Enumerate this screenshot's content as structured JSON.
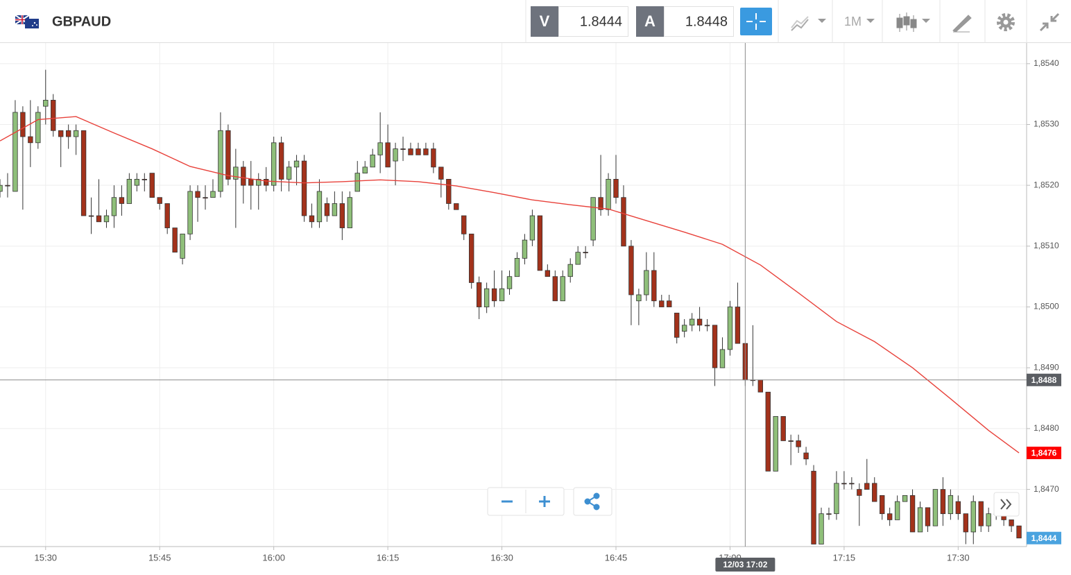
{
  "header": {
    "symbol": "GBPAUD",
    "bid_label": "V",
    "bid": "1.8444",
    "ask_label": "A",
    "ask": "1.8448",
    "timeframe": "1M"
  },
  "chart_data": {
    "type": "candlestick",
    "x": [
      "15:24",
      "15:25",
      "15:26",
      "15:27",
      "15:28",
      "15:29",
      "15:30",
      "15:31",
      "15:32",
      "15:33",
      "15:34",
      "15:35",
      "15:36",
      "15:37",
      "15:38",
      "15:39",
      "15:40",
      "15:41",
      "15:42",
      "15:43",
      "15:44",
      "15:45",
      "15:46",
      "15:47",
      "15:48",
      "15:49",
      "15:50",
      "15:51",
      "15:52",
      "15:53",
      "15:54",
      "15:55",
      "15:56",
      "15:57",
      "15:58",
      "15:59",
      "16:00",
      "16:01",
      "16:02",
      "16:03",
      "16:04",
      "16:05",
      "16:06",
      "16:07",
      "16:08",
      "16:09",
      "16:10",
      "16:11",
      "16:12",
      "16:13",
      "16:14",
      "16:15",
      "16:16",
      "16:17",
      "16:18",
      "16:19",
      "16:20",
      "16:21",
      "16:22",
      "16:23",
      "16:24",
      "16:25",
      "16:26",
      "16:27",
      "16:28",
      "16:29",
      "16:30",
      "16:31",
      "16:32",
      "16:33",
      "16:34",
      "16:35",
      "16:36",
      "16:37",
      "16:38",
      "16:39",
      "16:40",
      "16:41",
      "16:42",
      "16:43",
      "16:44",
      "16:45",
      "16:46",
      "16:47",
      "16:48",
      "16:49",
      "16:50",
      "16:51",
      "16:52",
      "16:53",
      "16:54",
      "16:55",
      "16:56",
      "16:57",
      "16:58",
      "16:59",
      "17:00",
      "17:01",
      "17:02",
      "17:03",
      "17:04",
      "17:05",
      "17:06",
      "17:07",
      "17:08",
      "17:09",
      "17:10",
      "17:11",
      "17:12",
      "17:13",
      "17:14",
      "17:15",
      "17:16",
      "17:17",
      "17:18",
      "17:19",
      "17:20",
      "17:21",
      "17:22",
      "17:23",
      "17:24",
      "17:25",
      "17:26",
      "17:27",
      "17:28",
      "17:29",
      "17:30",
      "17:31",
      "17:32",
      "17:33",
      "17:34",
      "17:35",
      "17:36",
      "17:37",
      "17:38"
    ],
    "open": [
      1.8519,
      1.852,
      1.8519,
      1.8532,
      1.8528,
      1.8527,
      1.8533,
      1.8534,
      1.8529,
      1.8529,
      1.8528,
      1.8529,
      1.8515,
      1.8515,
      1.8514,
      1.8515,
      1.8518,
      1.8517,
      1.852,
      1.8521,
      1.8522,
      1.8518,
      1.8517,
      1.8513,
      1.8508,
      1.8512,
      1.8519,
      1.8518,
      1.8518,
      1.8519,
      1.8529,
      1.8521,
      1.8523,
      1.8521,
      1.852,
      1.8521,
      1.852,
      1.8527,
      1.8521,
      1.8523,
      1.8524,
      1.8515,
      1.8514,
      1.8517,
      1.8515,
      1.8517,
      1.8513,
      1.8519,
      1.8522,
      1.8523,
      1.8525,
      1.8527,
      1.8524,
      1.8526,
      1.8526,
      1.8526,
      1.8526,
      1.8526,
      1.8523,
      1.8521,
      1.8517,
      1.8515,
      1.8512,
      1.8504,
      1.85,
      1.8503,
      1.8501,
      1.8503,
      1.8505,
      1.8508,
      1.8511,
      1.8515,
      1.8506,
      1.8505,
      1.8501,
      1.8505,
      1.8507,
      1.8509,
      1.8511,
      1.8518,
      1.8516,
      1.8521,
      1.8518,
      1.851,
      1.8501,
      1.8502,
      1.8506,
      1.8501,
      1.8501,
      1.8499,
      1.8496,
      1.8497,
      1.8498,
      1.8497,
      1.8497,
      1.849,
      1.8493,
      1.85,
      1.8494,
      1.8488,
      1.8488,
      1.8486,
      1.8473,
      1.8482,
      1.8478,
      1.8478,
      1.8476,
      1.8473,
      1.8461,
      1.8466,
      1.8466,
      1.8471,
      1.8471,
      1.847,
      1.8471,
      1.8471,
      1.8469,
      1.8466,
      1.8465,
      1.8468,
      1.8469,
      1.8463,
      1.8467,
      1.8464,
      1.847,
      1.8466,
      1.8468,
      1.8466,
      1.8463,
      1.8468,
      1.8464,
      1.8466,
      1.8466,
      1.8465,
      1.8464
    ],
    "high": [
      1.8521,
      1.8522,
      1.8534,
      1.8533,
      1.8534,
      1.8533,
      1.8539,
      1.8535,
      1.8529,
      1.853,
      1.853,
      1.8529,
      1.8518,
      1.8521,
      1.8516,
      1.852,
      1.852,
      1.8522,
      1.8522,
      1.8522,
      1.8522,
      1.8518,
      1.8517,
      1.8513,
      1.8512,
      1.852,
      1.852,
      1.852,
      1.8521,
      1.8532,
      1.853,
      1.8526,
      1.8524,
      1.8524,
      1.8522,
      1.8523,
      1.8528,
      1.8528,
      1.8524,
      1.8525,
      1.8525,
      1.8517,
      1.8521,
      1.8518,
      1.8519,
      1.8519,
      1.8519,
      1.8524,
      1.8524,
      1.8526,
      1.8532,
      1.853,
      1.8527,
      1.8528,
      1.8527,
      1.8527,
      1.8527,
      1.8527,
      1.8523,
      1.8521,
      1.8517,
      1.8515,
      1.8512,
      1.8505,
      1.8504,
      1.8506,
      1.8506,
      1.8506,
      1.8509,
      1.8512,
      1.8516,
      1.8515,
      1.8507,
      1.8506,
      1.8506,
      1.8508,
      1.851,
      1.851,
      1.8518,
      1.8525,
      1.8522,
      1.8525,
      1.852,
      1.8511,
      1.8503,
      1.8509,
      1.8509,
      1.8502,
      1.8502,
      1.8499,
      1.8498,
      1.8499,
      1.85,
      1.8498,
      1.8497,
      1.8495,
      1.8501,
      1.8504,
      1.8494,
      1.8497,
      1.8488,
      1.8486,
      1.8482,
      1.8482,
      1.8479,
      1.8479,
      1.8477,
      1.8474,
      1.8467,
      1.8467,
      1.8473,
      1.8473,
      1.8472,
      1.8471,
      1.8475,
      1.8472,
      1.8469,
      1.8467,
      1.8469,
      1.8469,
      1.847,
      1.8468,
      1.8467,
      1.847,
      1.8472,
      1.847,
      1.8469,
      1.8466,
      1.8469,
      1.8468,
      1.8467,
      1.8467,
      1.8466,
      1.8465,
      1.8464
    ],
    "low": [
      1.8518,
      1.8518,
      1.8519,
      1.8516,
      1.8523,
      1.8526,
      1.853,
      1.8528,
      1.8523,
      1.8526,
      1.8525,
      1.8515,
      1.8512,
      1.8514,
      1.8513,
      1.8513,
      1.8515,
      1.8517,
      1.8519,
      1.8519,
      1.8518,
      1.8516,
      1.8512,
      1.8509,
      1.8507,
      1.8511,
      1.8514,
      1.8516,
      1.8518,
      1.8518,
      1.852,
      1.8513,
      1.8517,
      1.8516,
      1.8516,
      1.8519,
      1.8519,
      1.8519,
      1.8519,
      1.852,
      1.8514,
      1.8513,
      1.8513,
      1.8514,
      1.8515,
      1.8511,
      1.8513,
      1.8519,
      1.8522,
      1.8523,
      1.8522,
      1.8523,
      1.852,
      1.8524,
      1.8525,
      1.8525,
      1.8525,
      1.8522,
      1.8518,
      1.8516,
      1.8516,
      1.8511,
      1.8503,
      1.8498,
      1.8499,
      1.85,
      1.8501,
      1.8502,
      1.8505,
      1.8507,
      1.851,
      1.8506,
      1.8505,
      1.8501,
      1.8501,
      1.8504,
      1.8507,
      1.8508,
      1.851,
      1.8515,
      1.8515,
      1.8517,
      1.851,
      1.8497,
      1.8497,
      1.8501,
      1.85,
      1.85,
      1.85,
      1.8494,
      1.8495,
      1.8496,
      1.8496,
      1.8496,
      1.8487,
      1.849,
      1.8492,
      1.8494,
      1.8487,
      1.8487,
      1.8486,
      1.8473,
      1.8473,
      1.8478,
      1.8474,
      1.8476,
      1.8474,
      1.8461,
      1.8461,
      1.8465,
      1.8465,
      1.847,
      1.847,
      1.8464,
      1.847,
      1.8468,
      1.8465,
      1.8464,
      1.8465,
      1.8468,
      1.8463,
      1.8463,
      1.8463,
      1.8464,
      1.8464,
      1.8465,
      1.8465,
      1.8461,
      1.8461,
      1.8463,
      1.8463,
      1.8465,
      1.8464,
      1.8463,
      1.8462
    ],
    "close": [
      1.852,
      1.852,
      1.8532,
      1.8528,
      1.8527,
      1.8532,
      1.8534,
      1.8529,
      1.8528,
      1.8528,
      1.8529,
      1.8515,
      1.8515,
      1.8514,
      1.8515,
      1.8518,
      1.8517,
      1.8521,
      1.8521,
      1.8521,
      1.8518,
      1.8517,
      1.8513,
      1.8509,
      1.8512,
      1.8519,
      1.8518,
      1.8518,
      1.8519,
      1.8529,
      1.8521,
      1.8523,
      1.852,
      1.852,
      1.8521,
      1.852,
      1.8527,
      1.8521,
      1.8523,
      1.8524,
      1.8515,
      1.8514,
      1.8519,
      1.8515,
      1.8517,
      1.8513,
      1.8518,
      1.8522,
      1.8523,
      1.8525,
      1.8527,
      1.8523,
      1.8526,
      1.8526,
      1.8525,
      1.8525,
      1.8525,
      1.8523,
      1.8521,
      1.8517,
      1.8516,
      1.8512,
      1.8504,
      1.85,
      1.8503,
      1.8501,
      1.8503,
      1.8505,
      1.8508,
      1.8511,
      1.8515,
      1.8506,
      1.8505,
      1.8501,
      1.8505,
      1.8507,
      1.8509,
      1.8509,
      1.8518,
      1.8516,
      1.8521,
      1.8518,
      1.851,
      1.8502,
      1.8502,
      1.8506,
      1.8501,
      1.85,
      1.85,
      1.8495,
      1.8497,
      1.8498,
      1.8497,
      1.8497,
      1.849,
      1.8493,
      1.85,
      1.8494,
      1.8488,
      1.8488,
      1.8486,
      1.8473,
      1.8482,
      1.8478,
      1.8478,
      1.8477,
      1.8475,
      1.8461,
      1.8466,
      1.8466,
      1.8471,
      1.8471,
      1.8471,
      1.8469,
      1.847,
      1.8468,
      1.8466,
      1.8465,
      1.8468,
      1.8469,
      1.8463,
      1.8467,
      1.8464,
      1.847,
      1.8466,
      1.8469,
      1.8466,
      1.8463,
      1.8468,
      1.8464,
      1.8466,
      1.8466,
      1.8465,
      1.8464,
      1.8462
    ],
    "up_color": "#8fbf7a",
    "down_color": "#a3321b",
    "moving_average": {
      "x": [
        "15:24",
        "15:29",
        "15:34",
        "15:39",
        "15:44",
        "15:49",
        "15:54",
        "15:59",
        "16:04",
        "16:09",
        "16:14",
        "16:19",
        "16:24",
        "16:29",
        "16:34",
        "16:39",
        "16:44",
        "16:49",
        "16:54",
        "16:59",
        "17:04",
        "17:09",
        "17:14",
        "17:19",
        "17:24",
        "17:29",
        "17:34",
        "17:38"
      ],
      "values": [
        1.85273,
        1.85308,
        1.85313,
        1.85286,
        1.8526,
        1.85231,
        1.85216,
        1.85207,
        1.85204,
        1.85206,
        1.85209,
        1.85206,
        1.85199,
        1.85188,
        1.85176,
        1.85168,
        1.85161,
        1.85142,
        1.85123,
        1.85103,
        1.85069,
        1.85023,
        1.84976,
        1.84943,
        1.849,
        1.84849,
        1.84797,
        1.8476
      ],
      "color": "#e8413a"
    },
    "xlim": [
      "15:24",
      "17:39"
    ],
    "xticks": [
      "15:30",
      "15:45",
      "16:00",
      "16:15",
      "16:30",
      "16:45",
      "17:00",
      "17:15",
      "17:30"
    ],
    "ylim": [
      1.84606,
      1.85434
    ],
    "yticks": [
      {
        "value": 1.854,
        "label": "1,8540"
      },
      {
        "value": 1.853,
        "label": "1,8530"
      },
      {
        "value": 1.852,
        "label": "1,8520"
      },
      {
        "value": 1.851,
        "label": "1,8510"
      },
      {
        "value": 1.85,
        "label": "1,8500"
      },
      {
        "value": 1.849,
        "label": "1,8490"
      },
      {
        "value": 1.848,
        "label": "1,8480"
      },
      {
        "value": 1.847,
        "label": "1,8470"
      }
    ],
    "grid": true,
    "crosshair": {
      "value": 1.8488,
      "label": "1,8488",
      "x": "17:02",
      "x_label": "12/03 17:02"
    },
    "ma_tag": {
      "label": "1,8476"
    },
    "last_price_tag": {
      "label": "1,8444"
    }
  }
}
